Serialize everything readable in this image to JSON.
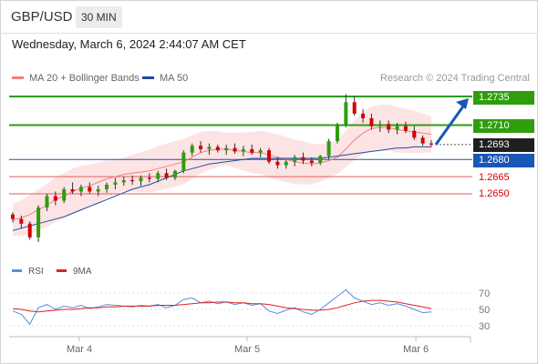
{
  "header": {
    "symbol": "GBP/USD",
    "timeframe": "30 MIN",
    "datetime": "Wednesday, March 6, 2024 2:44:07 AM CET"
  },
  "legend": {
    "ma20": "MA 20 + Bollinger Bands",
    "ma50": "MA 50",
    "credit": "Research © 2024 Trading Central"
  },
  "levels": [
    {
      "value": "1.2735",
      "style": "green",
      "color": "#2e9e0e"
    },
    {
      "value": "1.2710",
      "style": "green",
      "color": "#2e9e0e"
    },
    {
      "value": "1.2693",
      "style": "dark",
      "color": "#1f1f1f"
    },
    {
      "value": "1.2680",
      "style": "blue",
      "color": "#1a56b3"
    },
    {
      "value": "1.2665",
      "style": "red",
      "color": "#e85a5a"
    },
    {
      "value": "1.2650",
      "style": "red",
      "color": "#e85a5a"
    }
  ],
  "rsi_legend": {
    "rsi": "RSI",
    "ma": "9MA"
  },
  "colors": {
    "ma20": "#f08080",
    "ma50": "#1a4f9c",
    "band": "#fde4e4",
    "up": "#2e9e0e",
    "down": "#d40000",
    "rsi": "#5a8de0",
    "rsi_ma": "#e02020",
    "arrow": "#1a56b3"
  },
  "chart_data": [
    {
      "type": "candlestick",
      "title": "GBP/USD 30 MIN",
      "x_ticks": [
        "Mar 4",
        "Mar 5",
        "Mar 6"
      ],
      "y_levels": [
        1.2735,
        1.271,
        1.2693,
        1.268,
        1.2665,
        1.265
      ],
      "ylim": [
        1.26,
        1.274
      ],
      "series": [
        {
          "name": "MA 20 + Bollinger Bands",
          "values": [
            1.2627,
            1.2629,
            1.2632,
            1.2636,
            1.264,
            1.2645,
            1.2648,
            1.2652,
            1.2655,
            1.2657,
            1.266,
            1.2663,
            1.2665,
            1.2667,
            1.2668,
            1.2669,
            1.267,
            1.2672,
            1.2674,
            1.2676,
            1.2678,
            1.2682,
            1.2686,
            1.2688,
            1.2689,
            1.2689,
            1.2688,
            1.2687,
            1.2686,
            1.2686,
            1.2684,
            1.2682,
            1.268,
            1.2678,
            1.2677,
            1.2676,
            1.2677,
            1.2679,
            1.2682,
            1.2689,
            1.2697,
            1.2703,
            1.2707,
            1.2708,
            1.2708,
            1.2706,
            1.2705,
            1.2704,
            1.2703,
            1.2702
          ]
        },
        {
          "name": "MA 50",
          "values": [
            1.2618,
            1.262,
            1.2622,
            1.2624,
            1.2626,
            1.2628,
            1.263,
            1.2633,
            1.2636,
            1.2639,
            1.2642,
            1.2645,
            1.2648,
            1.2651,
            1.2654,
            1.2656,
            1.2658,
            1.2661,
            1.2664,
            1.2667,
            1.267,
            1.2672,
            1.2674,
            1.2676,
            1.2677,
            1.2678,
            1.2679,
            1.268,
            1.2681,
            1.2681,
            1.2681,
            1.2681,
            1.2681,
            1.2681,
            1.2681,
            1.2681,
            1.2681,
            1.2682,
            1.2683,
            1.2684,
            1.2685,
            1.2686,
            1.2687,
            1.2688,
            1.2689,
            1.269,
            1.269,
            1.2691,
            1.2691,
            1.2691
          ]
        }
      ],
      "candles": [
        [
          1.2632,
          1.2634,
          1.2625,
          1.2628
        ],
        [
          1.2628,
          1.2631,
          1.262,
          1.2624
        ],
        [
          1.2624,
          1.2626,
          1.261,
          1.2612
        ],
        [
          1.2612,
          1.264,
          1.2608,
          1.2638
        ],
        [
          1.2638,
          1.265,
          1.2635,
          1.2648
        ],
        [
          1.2648,
          1.2652,
          1.264,
          1.2644
        ],
        [
          1.2644,
          1.2656,
          1.2642,
          1.2654
        ],
        [
          1.2654,
          1.266,
          1.265,
          1.2652
        ],
        [
          1.2652,
          1.2658,
          1.2648,
          1.2656
        ],
        [
          1.2656,
          1.266,
          1.265,
          1.2652
        ],
        [
          1.2652,
          1.2657,
          1.2648,
          1.2654
        ],
        [
          1.2654,
          1.266,
          1.2651,
          1.2658
        ],
        [
          1.2658,
          1.2664,
          1.2654,
          1.266
        ],
        [
          1.266,
          1.2665,
          1.2657,
          1.2662
        ],
        [
          1.2662,
          1.2666,
          1.2658,
          1.2661
        ],
        [
          1.2661,
          1.2666,
          1.2657,
          1.2664
        ],
        [
          1.2664,
          1.2668,
          1.266,
          1.2663
        ],
        [
          1.2663,
          1.267,
          1.266,
          1.2668
        ],
        [
          1.2668,
          1.2672,
          1.2662,
          1.2664
        ],
        [
          1.2664,
          1.2671,
          1.2662,
          1.267
        ],
        [
          1.267,
          1.2688,
          1.2668,
          1.2686
        ],
        [
          1.2686,
          1.2694,
          1.2683,
          1.2692
        ],
        [
          1.2692,
          1.2696,
          1.2686,
          1.2689
        ],
        [
          1.2689,
          1.2694,
          1.2684,
          1.2691
        ],
        [
          1.2691,
          1.2693,
          1.2686,
          1.2688
        ],
        [
          1.2688,
          1.2693,
          1.2684,
          1.269
        ],
        [
          1.269,
          1.2694,
          1.2685,
          1.2687
        ],
        [
          1.2687,
          1.2692,
          1.2683,
          1.2689
        ],
        [
          1.2689,
          1.2693,
          1.2684,
          1.2686
        ],
        [
          1.2686,
          1.269,
          1.2682,
          1.2688
        ],
        [
          1.2688,
          1.269,
          1.2676,
          1.2678
        ],
        [
          1.2678,
          1.2682,
          1.2672,
          1.2675
        ],
        [
          1.2675,
          1.268,
          1.2672,
          1.2678
        ],
        [
          1.2678,
          1.2684,
          1.2674,
          1.2682
        ],
        [
          1.2682,
          1.2686,
          1.2676,
          1.2679
        ],
        [
          1.2679,
          1.2682,
          1.2674,
          1.2677
        ],
        [
          1.2677,
          1.2684,
          1.2675,
          1.2683
        ],
        [
          1.2683,
          1.2698,
          1.268,
          1.2696
        ],
        [
          1.2696,
          1.2712,
          1.2694,
          1.271
        ],
        [
          1.271,
          1.2737,
          1.2708,
          1.273
        ],
        [
          1.273,
          1.2735,
          1.2718,
          1.272
        ],
        [
          1.272,
          1.2724,
          1.2712,
          1.2716
        ],
        [
          1.2716,
          1.272,
          1.2706,
          1.2709
        ],
        [
          1.2709,
          1.2714,
          1.2704,
          1.2711
        ],
        [
          1.2711,
          1.2714,
          1.2703,
          1.2706
        ],
        [
          1.2706,
          1.2712,
          1.2702,
          1.2709
        ],
        [
          1.2709,
          1.2713,
          1.2703,
          1.2705
        ],
        [
          1.2705,
          1.2709,
          1.2697,
          1.2699
        ],
        [
          1.2699,
          1.2701,
          1.2692,
          1.2694
        ],
        [
          1.2694,
          1.2697,
          1.2691,
          1.2693
        ]
      ]
    },
    {
      "type": "line",
      "title": "RSI",
      "y_ticks": [
        70,
        50,
        30
      ],
      "ylim": [
        20,
        80
      ],
      "series": [
        {
          "name": "RSI",
          "values": [
            48,
            44,
            32,
            52,
            56,
            50,
            54,
            52,
            55,
            51,
            53,
            56,
            55,
            54,
            53,
            55,
            54,
            56,
            52,
            55,
            62,
            64,
            58,
            60,
            57,
            59,
            56,
            58,
            55,
            57,
            48,
            45,
            49,
            52,
            47,
            44,
            50,
            58,
            66,
            74,
            64,
            60,
            56,
            58,
            55,
            57,
            54,
            50,
            46,
            47
          ]
        },
        {
          "name": "9MA",
          "values": [
            51,
            50,
            48,
            47,
            48,
            49,
            50,
            50,
            51,
            52,
            52,
            53,
            53,
            54,
            54,
            54,
            54,
            55,
            55,
            55,
            56,
            57,
            58,
            58,
            59,
            59,
            58,
            58,
            57,
            57,
            56,
            54,
            52,
            51,
            50,
            49,
            49,
            50,
            52,
            55,
            58,
            60,
            61,
            61,
            60,
            59,
            57,
            55,
            53,
            51
          ]
        }
      ]
    }
  ]
}
